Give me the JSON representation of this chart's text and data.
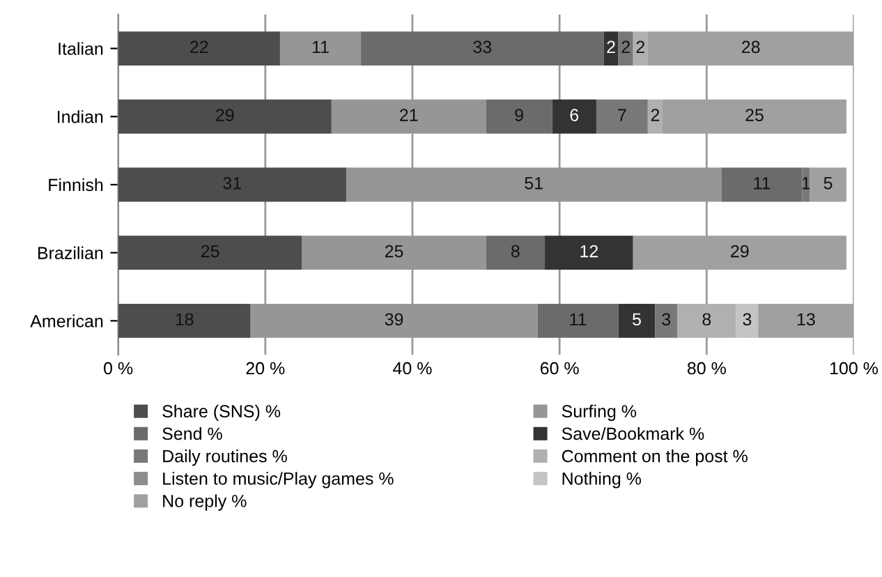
{
  "chart_data": {
    "type": "bar",
    "orientation": "horizontal",
    "stacked": true,
    "data_labels": true,
    "grid": "x",
    "legend": "bottom",
    "categories": [
      "Italian",
      "Indian",
      "Finnish",
      "Brazilian",
      "American"
    ],
    "xlim": [
      0,
      100
    ],
    "xticks": [
      {
        "value": 0,
        "label": "0 %"
      },
      {
        "value": 20,
        "label": "20 %"
      },
      {
        "value": 40,
        "label": "40 %"
      },
      {
        "value": 60,
        "label": "60 %"
      },
      {
        "value": 80,
        "label": "80 %"
      },
      {
        "value": 100,
        "label": "100 %"
      }
    ],
    "series": [
      {
        "name": "Share (SNS) %",
        "color": "#4d4d4d",
        "values": [
          22,
          29,
          31,
          25,
          18
        ]
      },
      {
        "name": "Surfing %",
        "color": "#969696",
        "values": [
          11,
          21,
          51,
          25,
          39
        ]
      },
      {
        "name": "Send %",
        "color": "#6b6b6b",
        "values": [
          33,
          9,
          11,
          8,
          11
        ]
      },
      {
        "name": "Save/Bookmark %",
        "color": "#333333",
        "values": [
          2,
          6,
          null,
          12,
          5
        ]
      },
      {
        "name": "Daily routines %",
        "color": "#787878",
        "values": [
          2,
          7,
          1,
          null,
          3
        ]
      },
      {
        "name": "Comment on the post %",
        "color": "#b0b0b0",
        "values": [
          2,
          2,
          null,
          null,
          8
        ]
      },
      {
        "name": "Listen to music/Play games %",
        "color": "#8c8c8c",
        "values": [
          null,
          null,
          null,
          null,
          null
        ]
      },
      {
        "name": "Nothing %",
        "color": "#c4c4c4",
        "values": [
          null,
          null,
          null,
          null,
          3
        ]
      },
      {
        "name": "No reply %",
        "color": "#a0a0a0",
        "values": [
          28,
          25,
          5,
          29,
          13
        ]
      }
    ]
  }
}
